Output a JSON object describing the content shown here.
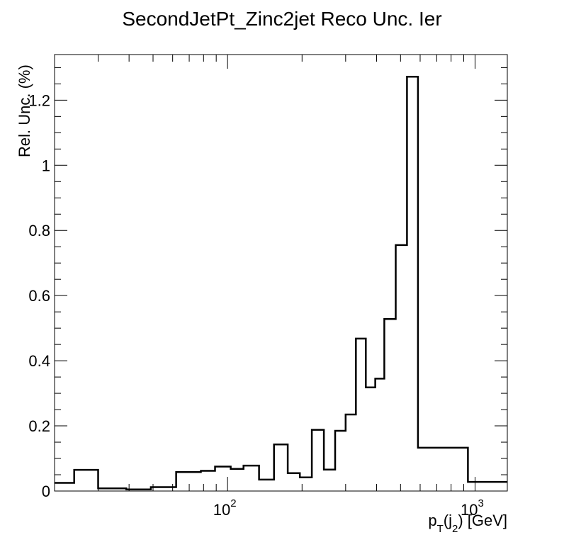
{
  "chart_data": {
    "type": "line",
    "style": "histogram-step",
    "title": "SecondJetPt_Zinc2jet Reco Unc. Ier",
    "ylabel": "Rel. Unc. (%)",
    "xlabel": {
      "main": "p",
      "sub1": "T",
      "mid": "(j",
      "sub2": "2",
      "end": ") [GeV]"
    },
    "x_scale": "log",
    "xlim": [
      20,
      1350
    ],
    "ylim": [
      0,
      1.34
    ],
    "y_ticks": [
      {
        "value": 0,
        "label": "0"
      },
      {
        "value": 0.2,
        "label": "0.2"
      },
      {
        "value": 0.4,
        "label": "0.4"
      },
      {
        "value": 0.6,
        "label": "0.6"
      },
      {
        "value": 0.8,
        "label": "0.8"
      },
      {
        "value": 1.0,
        "label": "1"
      },
      {
        "value": 1.2,
        "label": "1.2"
      }
    ],
    "x_ticks": [
      {
        "value": 100,
        "base": "10",
        "exp": "2"
      },
      {
        "value": 1000,
        "base": "10",
        "exp": "3"
      }
    ],
    "bin_edges": [
      20,
      24,
      30,
      39,
      49,
      62,
      78,
      89,
      103,
      116,
      134,
      154,
      175,
      196,
      219,
      245,
      272,
      300,
      330,
      362,
      395,
      430,
      478,
      531,
      588,
      936,
      1350
    ],
    "values": [
      0.025,
      0.065,
      0.008,
      0.005,
      0.012,
      0.058,
      0.062,
      0.075,
      0.068,
      0.078,
      0.035,
      0.143,
      0.055,
      0.042,
      0.188,
      0.066,
      0.185,
      0.235,
      0.468,
      0.318,
      0.345,
      0.528,
      0.755,
      1.272,
      0.133,
      0.028
    ],
    "grid": false,
    "legend": "none",
    "line_color": "#000000"
  }
}
